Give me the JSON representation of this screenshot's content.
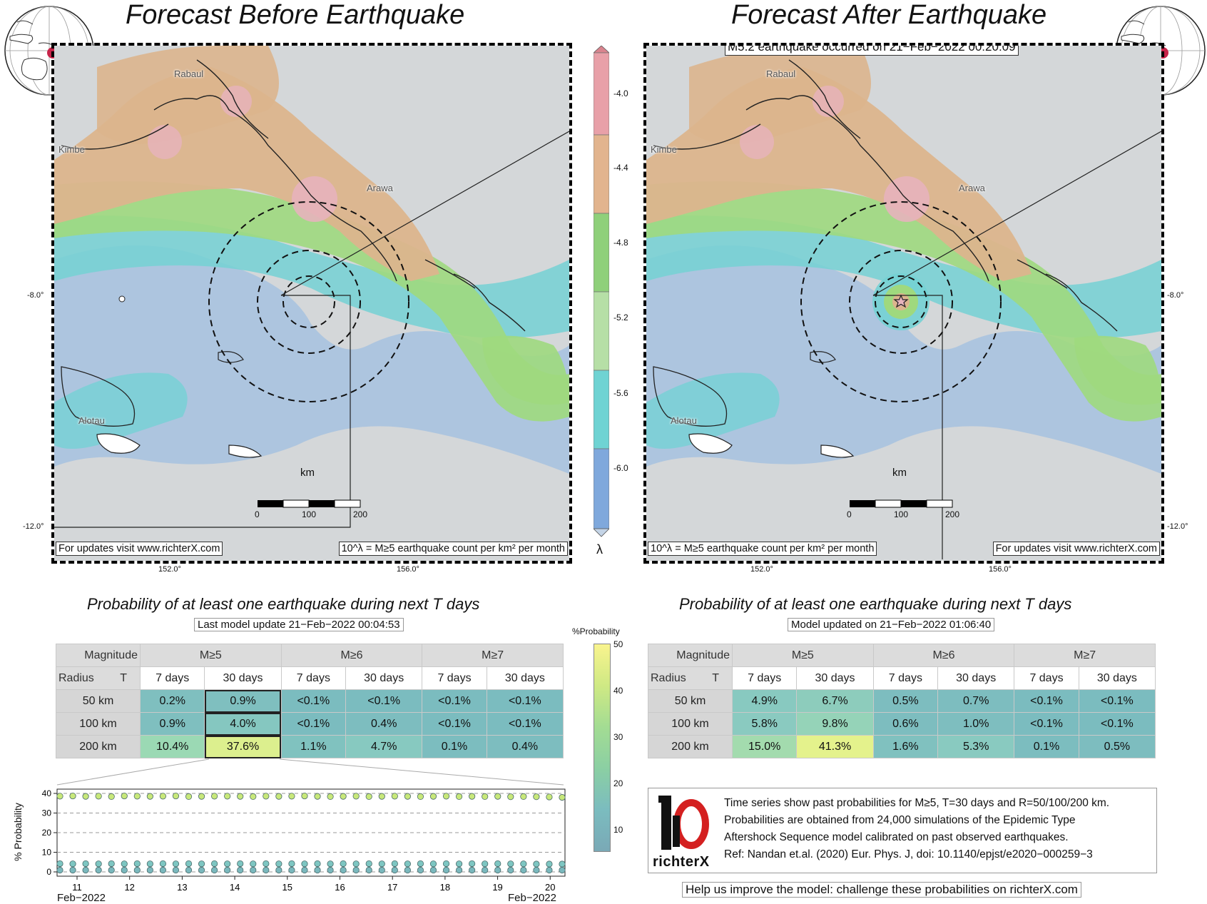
{
  "left_map": {
    "title": "Forecast Before Earthquake",
    "footer_left": "For updates visit www.richterX.com",
    "footer_right": "10^λ = M≥5 earthquake count per km² per month",
    "cities": [
      "Rabaul",
      "Kimbe",
      "Arawa",
      "Alotau"
    ],
    "km_label": "km",
    "scale_ticks": [
      "0",
      "100",
      "200"
    ],
    "lat_ticks": [
      "-8.0°",
      "-12.0°"
    ],
    "lon_ticks": [
      "152.0°",
      "156.0°"
    ]
  },
  "right_map": {
    "title": "Forecast After Earthquake",
    "event_label": "M5.2 earthquake occurred on 21−Feb−2022 00:20:09",
    "footer_left": "10^λ = M≥5 earthquake count per km² per month",
    "footer_right": "For updates visit www.richterX.com",
    "cities": [
      "Rabaul",
      "Kimbe",
      "Arawa",
      "Alotau"
    ],
    "km_label": "km",
    "scale_ticks": [
      "0",
      "100",
      "200"
    ],
    "lat_ticks": [
      "-8.0°",
      "-12.0°"
    ],
    "lon_ticks": [
      "152.0°",
      "156.0°"
    ]
  },
  "lambda_colorbar": {
    "ticks": [
      "-4.0",
      "-4.4",
      "-4.8",
      "-5.2",
      "-5.6",
      "-6.0"
    ],
    "label": "λ",
    "colors": [
      "#e8a0a8",
      "#e2b48e",
      "#8fd07a",
      "#b6dfa6",
      "#6fd3d3",
      "#7fa8dc"
    ]
  },
  "prob_colorbar": {
    "label": "%Probability",
    "ticks": [
      "50",
      "40",
      "30",
      "20",
      "10"
    ]
  },
  "left_table": {
    "title": "Probability of at least one earthquake during next T days",
    "update": "Last model update 21−Feb−2022 00:04:53",
    "corner_top": "Magnitude",
    "corner_bottom_a": "Radius",
    "corner_bottom_b": "T",
    "mags": [
      "M≥5",
      "M≥6",
      "M≥7"
    ],
    "periods": [
      "7 days",
      "30 days",
      "7 days",
      "30 days",
      "7 days",
      "30 days"
    ],
    "rows": [
      {
        "radius": "50 km",
        "vals": [
          "0.2%",
          "0.9%",
          "<0.1%",
          "<0.1%",
          "<0.1%",
          "<0.1%"
        ]
      },
      {
        "radius": "100 km",
        "vals": [
          "0.9%",
          "4.0%",
          "<0.1%",
          "0.4%",
          "<0.1%",
          "<0.1%"
        ]
      },
      {
        "radius": "200 km",
        "vals": [
          "10.4%",
          "37.6%",
          "1.1%",
          "4.7%",
          "0.1%",
          "0.4%"
        ]
      }
    ]
  },
  "right_table": {
    "title": "Probability of at least one earthquake during next T days",
    "update": "Model updated on 21−Feb−2022 01:06:40",
    "corner_top": "Magnitude",
    "corner_bottom_a": "Radius",
    "corner_bottom_b": "T",
    "mags": [
      "M≥5",
      "M≥6",
      "M≥7"
    ],
    "periods": [
      "7 days",
      "30 days",
      "7 days",
      "30 days",
      "7 days",
      "30 days"
    ],
    "rows": [
      {
        "radius": "50 km",
        "vals": [
          "4.9%",
          "6.7%",
          "0.5%",
          "0.7%",
          "<0.1%",
          "<0.1%"
        ]
      },
      {
        "radius": "100 km",
        "vals": [
          "5.8%",
          "9.8%",
          "0.6%",
          "1.0%",
          "<0.1%",
          "<0.1%"
        ]
      },
      {
        "radius": "200 km",
        "vals": [
          "15.0%",
          "41.3%",
          "1.6%",
          "5.3%",
          "0.1%",
          "0.5%"
        ]
      }
    ]
  },
  "chart_data": {
    "type": "scatter",
    "ylabel": "% Probability",
    "yticks": [
      0,
      10,
      20,
      30,
      40
    ],
    "ylim": [
      0,
      40
    ],
    "xticks": [
      "11",
      "12",
      "13",
      "14",
      "15",
      "16",
      "17",
      "18",
      "19",
      "20"
    ],
    "x_start_label": "Feb−2022",
    "x_end_label": "Feb−2022",
    "grid": "dashed horizontal",
    "series": [
      {
        "values": [
          38.6,
          38.7,
          38.5,
          38.6,
          38.4,
          38.7,
          38.6,
          38.5,
          38.6,
          38.7,
          38.4,
          38.5,
          38.6,
          38.6,
          38.5,
          38.4,
          38.6,
          38.5,
          38.6,
          38.7,
          38.5,
          38.4,
          38.5,
          38.6,
          38.4,
          38.5,
          38.6,
          38.5,
          38.4,
          38.5,
          38.6,
          38.4,
          38.5,
          38.4,
          38.5,
          38.3,
          38.4,
          38.3,
          38.2,
          38.0
        ],
        "color": "#c8e87a"
      },
      {
        "values": [
          4.2,
          4.1,
          4.2,
          4.1,
          4.2,
          4.1,
          4.2,
          4.1,
          4.2,
          4.1,
          4.2,
          4.1,
          4.2,
          4.1,
          4.2,
          4.1,
          4.2,
          4.1,
          4.2,
          4.1,
          4.2,
          4.1,
          4.2,
          4.1,
          4.2,
          4.1,
          4.2,
          4.1,
          4.2,
          4.1,
          4.2,
          4.1,
          4.2,
          4.1,
          4.2,
          4.1,
          4.1,
          4.0,
          4.0,
          4.0
        ],
        "color": "#7ec6c2"
      },
      {
        "values": [
          0.9,
          0.9,
          0.9,
          0.9,
          0.9,
          0.9,
          0.9,
          0.9,
          0.9,
          0.9,
          0.9,
          0.9,
          0.9,
          0.9,
          0.9,
          0.9,
          0.9,
          0.9,
          0.9,
          0.9,
          0.9,
          0.9,
          0.9,
          0.9,
          0.9,
          0.9,
          0.9,
          0.9,
          0.9,
          0.9,
          0.9,
          0.9,
          0.9,
          0.9,
          0.9,
          0.9,
          0.9,
          0.9,
          0.9,
          0.9
        ],
        "color": "#7ab8bd"
      }
    ]
  },
  "legend": {
    "brand": "richterX",
    "lines": [
      "Time series show past probabilities for M≥5, T=30 days and R=50/100/200 km.",
      "Probabilities are obtained from 24,000 simulations of the Epidemic Type",
      "Aftershock Sequence model calibrated on past observed earthquakes.",
      "Ref: Nandan et.al. (2020) Eur. Phys. J, doi: 10.1140/epjst/e2020−000259−3"
    ]
  },
  "footer": "Help us improve the model: challenge these probabilities on richterX.com"
}
